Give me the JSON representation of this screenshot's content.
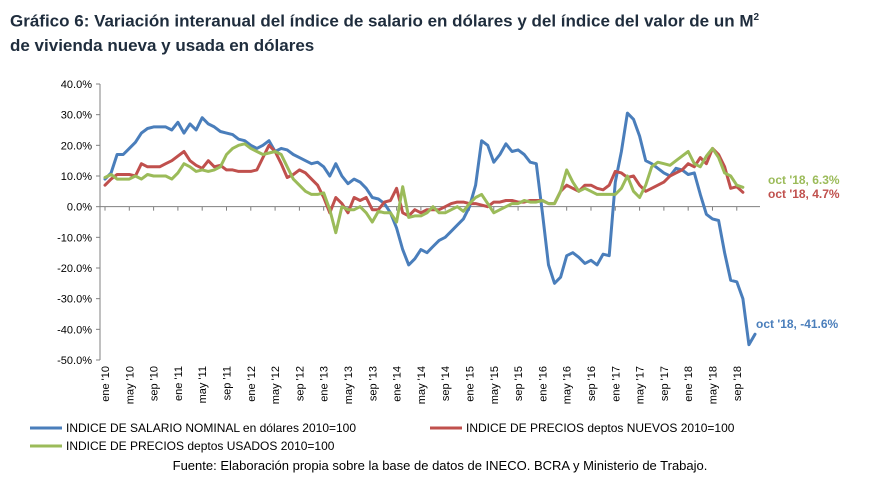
{
  "title": {
    "line1": "Gráfico 6: Variación interanual del índice de salario en dólares y del índice del valor de un M",
    "sup": "2",
    "line2": "de vivienda nueva y usada en dólares"
  },
  "source": "Fuente: Elaboración propia sobre la base de datos de INECO. BCRA y Ministerio de Trabajo.",
  "chart_data": {
    "type": "line",
    "title": "",
    "xlabel": "",
    "ylabel": "",
    "ylim": [
      -50,
      40
    ],
    "yticks": [
      -50,
      -40,
      -30,
      -20,
      -10,
      0,
      10,
      20,
      30,
      40
    ],
    "ytick_labels": [
      "-50.0%",
      "-40.0%",
      "-30.0%",
      "-20.0%",
      "-10.0%",
      "0.0%",
      "10.0%",
      "20.0%",
      "30.0%",
      "40.0%"
    ],
    "start_month": "ene '10",
    "x_tick_labels": [
      "ene '10",
      "may '10",
      "sep '10",
      "ene '11",
      "may '11",
      "sep '11",
      "ene '12",
      "may '12",
      "sep '12",
      "ene '13",
      "may '13",
      "sep '13",
      "ene '14",
      "may '14",
      "sep '14",
      "ene '15",
      "may '15",
      "sep '15",
      "ene '16",
      "may '16",
      "sep '16",
      "ene '17",
      "may '17",
      "sep '17",
      "ene '18",
      "may '18",
      "sep '18"
    ],
    "grid": false,
    "legend_position": "bottom",
    "series": [
      {
        "name": "INDICE DE SALARIO NOMINAL en dólares 2010=100",
        "color": "#4a7ebb",
        "end_label": "oct '18, -41.6%",
        "values": [
          9,
          11,
          17,
          17,
          19,
          21,
          24,
          25.5,
          26,
          26,
          26,
          25,
          27.5,
          24,
          27,
          25,
          29,
          27,
          26,
          24.5,
          24,
          23.5,
          22,
          21.5,
          20,
          19,
          20,
          21.5,
          18,
          19,
          18.5,
          17,
          16,
          15,
          14,
          14.5,
          13,
          10,
          14,
          10,
          7.5,
          9,
          8,
          6,
          3,
          2.5,
          1,
          -2,
          -7,
          -14,
          -19,
          -17,
          -14,
          -15,
          -13,
          -11,
          -10,
          -8,
          -6,
          -4,
          0,
          7,
          21.5,
          20,
          14.5,
          17,
          20.5,
          18,
          18.5,
          17,
          14.5,
          14,
          -2,
          -19,
          -25,
          -23,
          -16,
          -15,
          -16.5,
          -18.5,
          -17.5,
          -19,
          -15.5,
          -16,
          8,
          18,
          30.5,
          28.5,
          23,
          15,
          14,
          12.5,
          11,
          10,
          12.5,
          12,
          10.5,
          11,
          4,
          -2.5,
          -4,
          -4.5,
          -15,
          -24,
          -24.5,
          -30,
          -45,
          -41.6
        ]
      },
      {
        "name": "INDICE DE PRECIOS deptos NUEVOS 2010=100",
        "color": "#c0504d",
        "end_label": "oct '18, 4.7%",
        "values": [
          7,
          9,
          10.5,
          10.5,
          10.5,
          10,
          14,
          13,
          13,
          13,
          14,
          15,
          16.5,
          18,
          15,
          13.5,
          12.5,
          15,
          13,
          13.5,
          12,
          12,
          11.5,
          11.5,
          11.5,
          12,
          16,
          20,
          18,
          14,
          9.5,
          10.5,
          12,
          11,
          9,
          7,
          3,
          -2,
          3,
          1,
          -2,
          3,
          2,
          3,
          -1,
          -1,
          1.5,
          2,
          6,
          -2,
          -3,
          -1,
          -2,
          -1,
          -1,
          -1,
          0,
          1,
          1.5,
          1.5,
          1,
          1,
          0.5,
          0,
          1.5,
          1.5,
          2,
          2,
          1.5,
          1.5,
          2,
          2,
          2,
          1,
          1,
          5,
          7,
          6,
          5,
          7,
          7,
          6,
          5.5,
          7,
          11.5,
          11,
          9.5,
          10,
          7,
          5,
          6,
          7,
          8,
          10,
          11,
          12,
          14,
          13,
          16,
          14,
          19,
          17,
          13,
          6,
          6.5,
          4.7
        ]
      },
      {
        "name": "INDICE DE PRECIOS deptos USADOS 2010=100",
        "color": "#9bbb59",
        "end_label": "oct '18, 6.3%",
        "values": [
          9.5,
          10.5,
          9,
          9,
          9,
          10,
          9,
          10.5,
          10,
          10,
          10,
          9,
          11,
          14,
          13,
          11.5,
          12,
          11.5,
          12,
          13,
          17,
          19,
          20,
          20.5,
          19,
          18,
          17,
          17.5,
          18,
          17,
          13,
          9,
          7,
          5,
          4,
          4,
          4.5,
          -1,
          -8.5,
          0,
          -1,
          -1,
          0,
          -2,
          -5,
          -1.5,
          -2,
          -2,
          -5,
          6.5,
          -3.5,
          -3,
          -3,
          -2,
          0,
          -2,
          -2,
          -1,
          0,
          -1.5,
          1,
          3,
          4,
          1,
          -2,
          -1,
          0,
          1,
          1,
          2,
          1.5,
          1.5,
          2,
          1,
          1,
          5,
          12,
          8,
          5,
          6,
          5,
          4,
          4,
          4,
          4,
          6,
          10,
          5,
          3,
          7,
          13,
          14.5,
          14,
          13.5,
          15,
          16.5,
          18,
          14,
          13,
          16.5,
          19,
          16,
          11,
          10,
          7,
          6.3
        ]
      }
    ]
  }
}
